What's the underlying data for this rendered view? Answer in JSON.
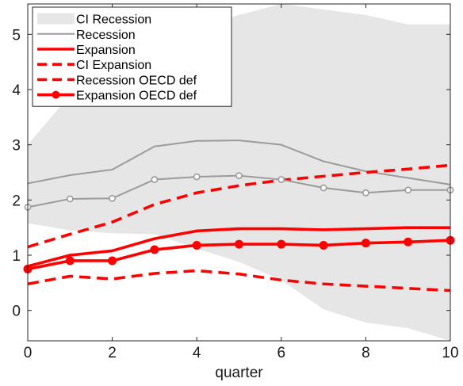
{
  "chart_data": {
    "type": "line",
    "xlabel": "quarter",
    "ylabel": "",
    "xlim": [
      0,
      10
    ],
    "ylim": [
      -0.55,
      5.55
    ],
    "x_ticks": [
      0,
      2,
      4,
      6,
      8,
      10
    ],
    "y_ticks": [
      0,
      1,
      2,
      3,
      4,
      5
    ],
    "grid": false,
    "legend_position": "top-left",
    "x": [
      0,
      1,
      2,
      3,
      4,
      5,
      6,
      7,
      8,
      9,
      10
    ],
    "series": [
      {
        "name": "CI Recession",
        "kind": "band",
        "color": "#e6e6e6",
        "lower": [
          1.58,
          1.45,
          1.4,
          1.38,
          1.12,
          0.88,
          0.55,
          0.02,
          -0.22,
          -0.32,
          -0.55
        ],
        "upper": [
          3.0,
          3.9,
          4.55,
          5.0,
          5.12,
          5.35,
          5.55,
          5.45,
          5.35,
          5.18,
          5.18
        ]
      },
      {
        "name": "Recession",
        "kind": "line",
        "color": "#9b9b9b",
        "dash": "solid",
        "marker": "none",
        "values": [
          2.3,
          2.45,
          2.55,
          2.97,
          3.07,
          3.08,
          3.0,
          2.7,
          2.52,
          2.4,
          2.28
        ]
      },
      {
        "name": "Expansion",
        "kind": "line",
        "color": "#ff0000",
        "dash": "solid",
        "marker": "none",
        "values": [
          0.8,
          1.0,
          1.08,
          1.3,
          1.44,
          1.48,
          1.48,
          1.46,
          1.48,
          1.5,
          1.5
        ]
      },
      {
        "name": "CI Expansion",
        "kind": "line",
        "color": "#ff0000",
        "dash": "dashed",
        "marker": "none",
        "values": [
          1.15,
          1.38,
          1.6,
          1.92,
          2.13,
          2.26,
          2.36,
          2.43,
          2.5,
          2.56,
          2.63
        ]
      },
      {
        "name": "Recession OECD def",
        "kind": "line",
        "color": "#ff0000",
        "dash": "dashed",
        "marker": "none",
        "values": [
          0.48,
          0.62,
          0.57,
          0.67,
          0.72,
          0.66,
          0.55,
          0.48,
          0.44,
          0.4,
          0.36
        ]
      },
      {
        "name": "Expansion OECD def",
        "kind": "line",
        "color": "#ff0000",
        "dash": "solid",
        "marker": "filled-circle",
        "values": [
          0.75,
          0.9,
          0.9,
          1.1,
          1.18,
          1.2,
          1.2,
          1.18,
          1.22,
          1.24,
          1.27
        ]
      },
      {
        "name": "",
        "kind": "line",
        "color": "#9b9b9b",
        "dash": "solid",
        "marker": "open-circle",
        "values": [
          1.87,
          2.02,
          2.03,
          2.37,
          2.42,
          2.44,
          2.37,
          2.22,
          2.13,
          2.18,
          2.18
        ]
      }
    ]
  }
}
